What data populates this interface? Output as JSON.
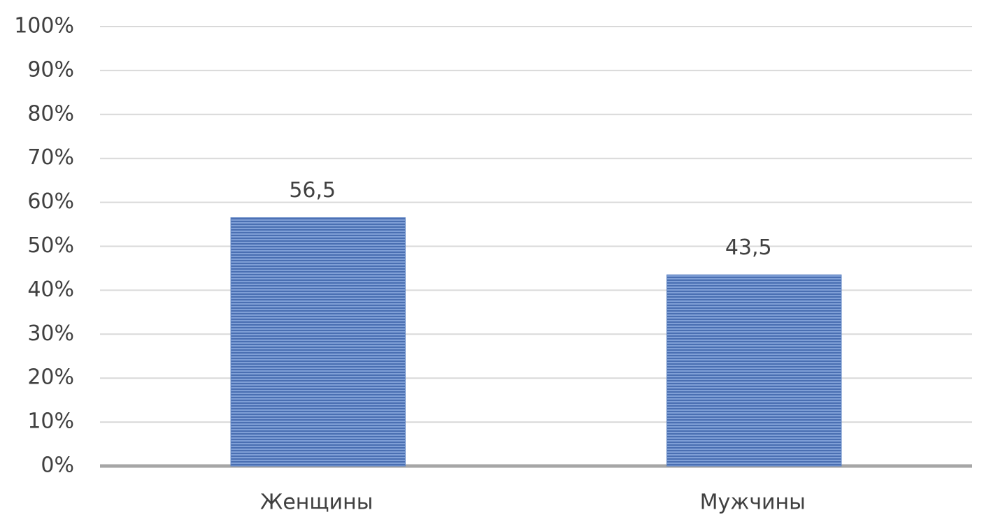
{
  "chart_data": {
    "type": "bar",
    "categories": [
      "Женщины",
      "Мужчины"
    ],
    "values": [
      56.5,
      43.5
    ],
    "value_labels": [
      "56,5",
      "43,5"
    ],
    "color": "#5a80c2",
    "ylim": [
      0,
      100
    ],
    "yticks": [
      {
        "value": 0,
        "label": "0%"
      },
      {
        "value": 10,
        "label": "10%"
      },
      {
        "value": 20,
        "label": "20%"
      },
      {
        "value": 30,
        "label": "30%"
      },
      {
        "value": 40,
        "label": "40%"
      },
      {
        "value": 50,
        "label": "50%"
      },
      {
        "value": 60,
        "label": "60%"
      },
      {
        "value": 70,
        "label": "70%"
      },
      {
        "value": 80,
        "label": "80%"
      },
      {
        "value": 90,
        "label": "90%"
      },
      {
        "value": 100,
        "label": "100%"
      }
    ],
    "grid": true
  }
}
